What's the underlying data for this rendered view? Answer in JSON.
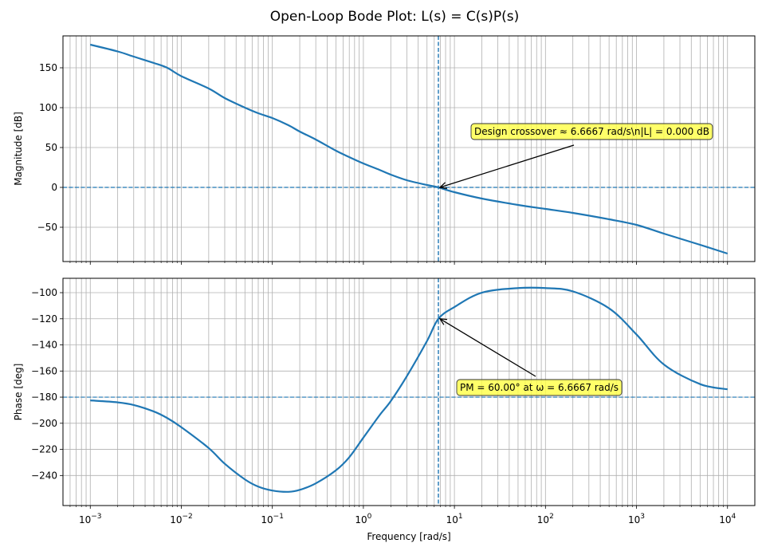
{
  "chart_data": [
    {
      "type": "line",
      "title": "Open-Loop Bode Plot: L(s) = C(s)P(s)",
      "ylabel": "Magnitude [dB]",
      "xscale": "log",
      "xlim_log10": [
        -3.3,
        4.3
      ],
      "ylim": [
        -93,
        190
      ],
      "grid": true,
      "yticks": [
        150,
        100,
        50,
        0,
        -50
      ],
      "ytick_labels": [
        "150",
        "100",
        "50",
        "0",
        "−50"
      ],
      "series": [
        {
          "color": "#1f77b4",
          "x": [
            0.001,
            0.002,
            0.003,
            0.005,
            0.007,
            0.01,
            0.02,
            0.03,
            0.05,
            0.07,
            0.1,
            0.15,
            0.2,
            0.3,
            0.5,
            0.7,
            1,
            1.5,
            2,
            3,
            5,
            6.6667,
            10,
            20,
            50,
            100,
            200,
            500,
            1000,
            2000,
            5000,
            10000
          ],
          "y": [
            179,
            170.5,
            164,
            156,
            150,
            139.5,
            124,
            112,
            100,
            93,
            87,
            78,
            70,
            60,
            46,
            38,
            30,
            22,
            16,
            9,
            3,
            0,
            -6,
            -14,
            -22,
            -27,
            -32,
            -40,
            -47,
            -58,
            -72,
            -83
          ]
        }
      ],
      "hlines": [
        {
          "y": 0,
          "color": "#1f77b4",
          "style": "dashed"
        }
      ],
      "vlines": [
        {
          "x": 6.6667,
          "color": "#1f77b4",
          "style": "dashed"
        }
      ],
      "annotation": {
        "text": "Design crossover ≈ 6.6667 rad/s\\n|L| = 0.000 dB",
        "point": [
          6.6667,
          0
        ],
        "box_color": "#ffff44"
      }
    },
    {
      "type": "line",
      "xlabel": "Frequency [rad/s]",
      "ylabel": "Phase [deg]",
      "xscale": "log",
      "xlim_log10": [
        -3.3,
        4.3
      ],
      "ylim": [
        -263,
        -89
      ],
      "grid": true,
      "yticks": [
        -100,
        -120,
        -140,
        -160,
        -180,
        -200,
        -220,
        -240
      ],
      "ytick_labels": [
        "−100",
        "−120",
        "−140",
        "−160",
        "−180",
        "−200",
        "−220",
        "−240"
      ],
      "xtick_bases": [
        "10",
        "10",
        "10",
        "10",
        "10",
        "10",
        "10",
        "10"
      ],
      "xtick_exponents": [
        "−3",
        "−2",
        "−1",
        "0",
        "1",
        "2",
        "3",
        "4"
      ],
      "series": [
        {
          "color": "#1f77b4",
          "x": [
            0.001,
            0.002,
            0.003,
            0.005,
            0.007,
            0.01,
            0.02,
            0.03,
            0.05,
            0.07,
            0.1,
            0.15,
            0.2,
            0.3,
            0.5,
            0.7,
            1,
            1.5,
            2,
            3,
            5,
            6.6667,
            10,
            20,
            50,
            100,
            200,
            500,
            1000,
            2000,
            5000,
            10000
          ],
          "y": [
            -182.5,
            -184,
            -186,
            -191,
            -196,
            -203,
            -219,
            -231,
            -243,
            -248.5,
            -251.5,
            -252.5,
            -251,
            -246,
            -236,
            -226,
            -211,
            -194,
            -183,
            -164,
            -137,
            -120,
            -111,
            -100,
            -96.5,
            -96.5,
            -99,
            -112,
            -132,
            -155,
            -170,
            -174
          ]
        }
      ],
      "hlines": [
        {
          "y": -180,
          "color": "#1f77b4",
          "style": "dashed"
        }
      ],
      "vlines": [
        {
          "x": 6.6667,
          "color": "#1f77b4",
          "style": "dashed"
        }
      ],
      "annotation": {
        "text": "PM = 60.00° at ω = 6.6667 rad/s",
        "point": [
          6.6667,
          -120
        ],
        "box_color": "#ffff44"
      }
    }
  ]
}
